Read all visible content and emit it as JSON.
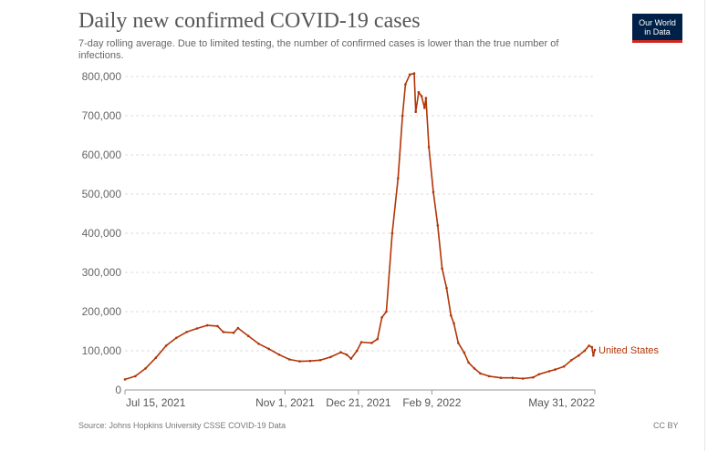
{
  "header": {
    "title": "Daily new confirmed COVID-19 cases",
    "subtitle": "7-day rolling average. Due to limited testing, the number of confirmed cases is lower than the true number of infections.",
    "logo_line1": "Our World",
    "logo_line2": "in Data"
  },
  "footer": {
    "source": "Source: Johns Hopkins University CSSE COVID-19 Data",
    "license": "CC BY"
  },
  "chart_data": {
    "type": "line",
    "title": "Daily new confirmed COVID-19 cases",
    "xlabel": "",
    "ylabel": "",
    "y_ticks": [
      0,
      100000,
      200000,
      300000,
      400000,
      500000,
      600000,
      700000,
      800000
    ],
    "y_tick_labels": [
      "0",
      "100,000",
      "200,000",
      "300,000",
      "400,000",
      "500,000",
      "600,000",
      "700,000",
      "800,000"
    ],
    "ylim": [
      0,
      800000
    ],
    "x_tick_labels": [
      "Jul 15, 2021",
      "Nov 1, 2021",
      "Dec 21, 2021",
      "Feb 9, 2022",
      "May 31, 2022"
    ],
    "x_tick_dates": [
      "2021-07-15",
      "2021-11-01",
      "2021-12-21",
      "2022-02-09",
      "2022-05-31"
    ],
    "xlim": [
      "2021-07-15",
      "2022-05-31"
    ],
    "grid": "horizontal dotted",
    "line_color": "#b13507",
    "series": [
      {
        "name": "United States",
        "points": [
          [
            "2021-07-15",
            27000
          ],
          [
            "2021-07-22",
            35000
          ],
          [
            "2021-07-29",
            55000
          ],
          [
            "2021-08-05",
            82000
          ],
          [
            "2021-08-12",
            113000
          ],
          [
            "2021-08-19",
            133000
          ],
          [
            "2021-08-26",
            148000
          ],
          [
            "2021-09-02",
            157000
          ],
          [
            "2021-09-09",
            165000
          ],
          [
            "2021-09-16",
            163000
          ],
          [
            "2021-09-20",
            148000
          ],
          [
            "2021-09-27",
            146000
          ],
          [
            "2021-09-30",
            158000
          ],
          [
            "2021-10-07",
            138000
          ],
          [
            "2021-10-14",
            118000
          ],
          [
            "2021-10-21",
            105000
          ],
          [
            "2021-10-28",
            90000
          ],
          [
            "2021-11-04",
            78000
          ],
          [
            "2021-11-11",
            73000
          ],
          [
            "2021-11-18",
            74000
          ],
          [
            "2021-11-25",
            76000
          ],
          [
            "2021-12-02",
            84000
          ],
          [
            "2021-12-09",
            96000
          ],
          [
            "2021-12-13",
            90000
          ],
          [
            "2021-12-16",
            80000
          ],
          [
            "2021-12-20",
            100000
          ],
          [
            "2021-12-23",
            122000
          ],
          [
            "2021-12-30",
            120000
          ],
          [
            "2022-01-03",
            130000
          ],
          [
            "2022-01-06",
            185000
          ],
          [
            "2022-01-09",
            200000
          ],
          [
            "2022-01-13",
            400000
          ],
          [
            "2022-01-17",
            540000
          ],
          [
            "2022-01-20",
            700000
          ],
          [
            "2022-01-22",
            780000
          ],
          [
            "2022-01-25",
            805000
          ],
          [
            "2022-01-28",
            808000
          ],
          [
            "2022-01-29",
            710000
          ],
          [
            "2022-01-31",
            760000
          ],
          [
            "2022-02-02",
            750000
          ],
          [
            "2022-02-04",
            720000
          ],
          [
            "2022-02-05",
            745000
          ],
          [
            "2022-02-07",
            620000
          ],
          [
            "2022-02-10",
            505000
          ],
          [
            "2022-02-13",
            420000
          ],
          [
            "2022-02-16",
            310000
          ],
          [
            "2022-02-19",
            260000
          ],
          [
            "2022-02-22",
            190000
          ],
          [
            "2022-02-24",
            170000
          ],
          [
            "2022-02-27",
            120000
          ],
          [
            "2022-03-03",
            95000
          ],
          [
            "2022-03-06",
            70000
          ],
          [
            "2022-03-10",
            55000
          ],
          [
            "2022-03-14",
            42000
          ],
          [
            "2022-03-20",
            35000
          ],
          [
            "2022-03-28",
            31000
          ],
          [
            "2022-04-05",
            31000
          ],
          [
            "2022-04-12",
            29000
          ],
          [
            "2022-04-19",
            32000
          ],
          [
            "2022-04-23",
            40000
          ],
          [
            "2022-04-30",
            48000
          ],
          [
            "2022-05-04",
            52000
          ],
          [
            "2022-05-10",
            60000
          ],
          [
            "2022-05-15",
            76000
          ],
          [
            "2022-05-20",
            88000
          ],
          [
            "2022-05-24",
            100000
          ],
          [
            "2022-05-27",
            113000
          ],
          [
            "2022-05-29",
            109000
          ],
          [
            "2022-05-30",
            88000
          ],
          [
            "2022-05-31",
            102000
          ]
        ]
      }
    ]
  }
}
